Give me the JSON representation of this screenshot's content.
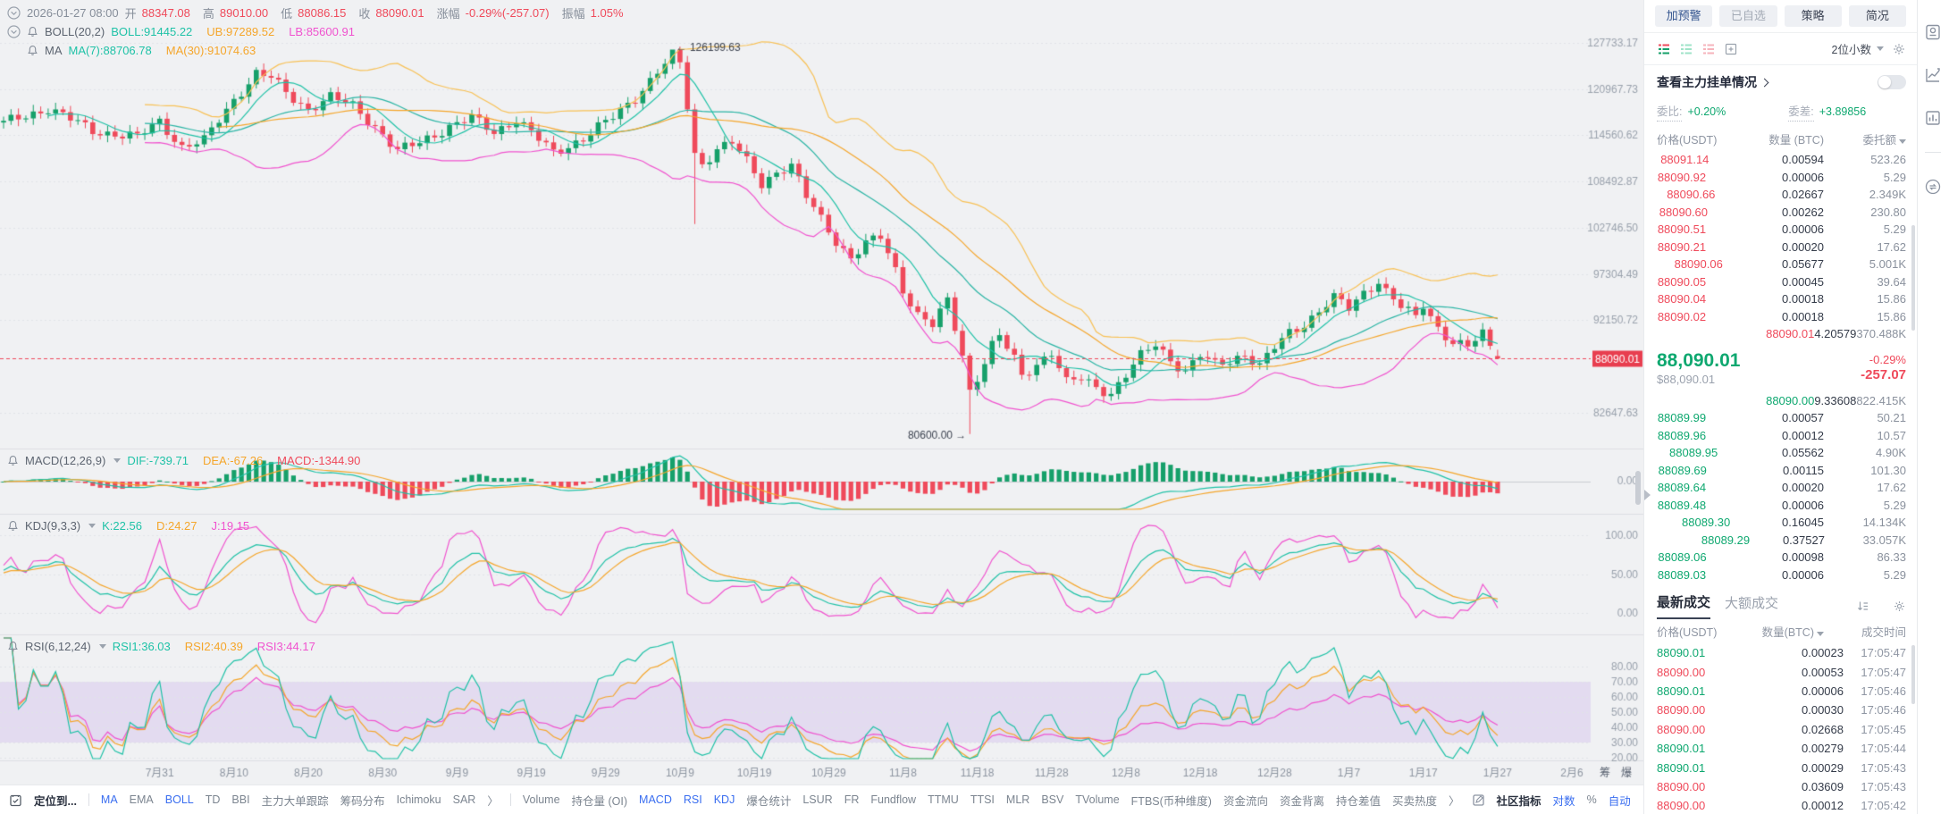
{
  "info_bar": {
    "datetime": "2026-01-27 08:00",
    "segments": [
      {
        "label": "开",
        "value": "88347.08"
      },
      {
        "label": "高",
        "value": "89010.00"
      },
      {
        "label": "低",
        "value": "88086.15"
      },
      {
        "label": "收",
        "value": "88090.01"
      },
      {
        "label": "涨幅",
        "value": "-0.29%(-257.07)"
      },
      {
        "label": "振幅",
        "value": "1.05%"
      }
    ]
  },
  "overlays": {
    "boll": {
      "name": "BOLL(20,2)",
      "values": [
        {
          "text": "BOLL:91445.22",
          "color": "#1fc2a7"
        },
        {
          "text": "UB:97289.52",
          "color": "#f5a62b"
        },
        {
          "text": "LB:85600.91",
          "color": "#f053cf"
        }
      ]
    },
    "ma": {
      "name": "MA",
      "values": [
        {
          "text": "MA(7):88706.78",
          "color": "#1fc2a7"
        },
        {
          "text": "MA(30):91074.63",
          "color": "#f5a62b"
        }
      ]
    },
    "macd": {
      "name": "MACD(12,26,9)",
      "values": [
        {
          "text": "DIF:-739.71",
          "color": "#1fc2a7"
        },
        {
          "text": "DEA:-67.26",
          "color": "#f5a62b"
        },
        {
          "text": "MACD:-1344.90",
          "color": "#ef4a5b"
        }
      ]
    },
    "kdj": {
      "name": "KDJ(9,3,3)",
      "values": [
        {
          "text": "K:22.56",
          "color": "#1fc2a7"
        },
        {
          "text": "D:24.27",
          "color": "#f5a62b"
        },
        {
          "text": "J:19.15",
          "color": "#f053cf"
        }
      ]
    },
    "rsi": {
      "name": "RSI(6,12,24)",
      "values": [
        {
          "text": "RSI1:36.03",
          "color": "#1fc2a7"
        },
        {
          "text": "RSI2:40.39",
          "color": "#f5a62b"
        },
        {
          "text": "RSI3:44.17",
          "color": "#f053cf"
        }
      ]
    }
  },
  "chart_data": {
    "type": "candlestick",
    "log_scale": true,
    "price_axis_labels": [
      "127733.17",
      "120967.73",
      "114560.62",
      "108492.87",
      "102746.50",
      "97304.49",
      "92150.72",
      "82647.63"
    ],
    "current_price": 88090.01,
    "current_price_label": "88090.01",
    "macd_axis_labels": [
      "0.00"
    ],
    "kdj_axis_labels": [
      "100.00",
      "50.00",
      "0.00"
    ],
    "rsi_axis_labels": [
      "80.00",
      "70.00",
      "60.00",
      "50.00",
      "40.00",
      "30.00",
      "20.00"
    ],
    "annotation_high": "← 126199.63",
    "annotation_low": "80600.00 →",
    "high_anchor": {
      "slot": 90,
      "price": 126199.63
    },
    "low_anchor": {
      "slot": 130,
      "price": 80600.0
    },
    "crash_wick": {
      "slot": 93,
      "low": 103200
    },
    "last_candle": {
      "open": 88347.08,
      "high": 89010.0,
      "low": 88086.15,
      "close": 88090.01
    },
    "candle_count": 202,
    "date_labels": [
      {
        "l": "7月31",
        "s": 21
      },
      {
        "l": "8月10",
        "s": 31
      },
      {
        "l": "8月20",
        "s": 41
      },
      {
        "l": "8月30",
        "s": 51
      },
      {
        "l": "9月9",
        "s": 61
      },
      {
        "l": "9月19",
        "s": 71
      },
      {
        "l": "9月29",
        "s": 81
      },
      {
        "l": "10月9",
        "s": 91
      },
      {
        "l": "10月19",
        "s": 101
      },
      {
        "l": "10月29",
        "s": 111
      },
      {
        "l": "11月8",
        "s": 121
      },
      {
        "l": "11月18",
        "s": 131
      },
      {
        "l": "11月28",
        "s": 141
      },
      {
        "l": "12月8",
        "s": 151
      },
      {
        "l": "12月18",
        "s": 161
      },
      {
        "l": "12月28",
        "s": 171
      },
      {
        "l": "1月7",
        "s": 181
      },
      {
        "l": "1月17",
        "s": 191
      },
      {
        "l": "1月27",
        "s": 201
      },
      {
        "l": "2月6",
        "s": 211
      }
    ],
    "extra_axis_chars": [
      "筹",
      "爆"
    ],
    "anchors": [
      [
        0,
        116200
      ],
      [
        6,
        118300
      ],
      [
        12,
        115200
      ],
      [
        18,
        114300
      ],
      [
        21,
        116500
      ],
      [
        24,
        113000
      ],
      [
        27,
        113800
      ],
      [
        31,
        119500
      ],
      [
        34,
        123200
      ],
      [
        36,
        122600
      ],
      [
        38,
        120400
      ],
      [
        41,
        118200
      ],
      [
        44,
        119800
      ],
      [
        47,
        118600
      ],
      [
        50,
        115800
      ],
      [
        53,
        112400
      ],
      [
        56,
        113600
      ],
      [
        60,
        115800
      ],
      [
        63,
        116900
      ],
      [
        66,
        115000
      ],
      [
        69,
        116800
      ],
      [
        72,
        114000
      ],
      [
        74,
        112200
      ],
      [
        78,
        114200
      ],
      [
        82,
        117000
      ],
      [
        85,
        119800
      ],
      [
        88,
        123500
      ],
      [
        90,
        125800
      ],
      [
        91,
        124600
      ],
      [
        92,
        118500
      ],
      [
        93,
        112000
      ],
      [
        94,
        110800
      ],
      [
        96,
        112800
      ],
      [
        98,
        113600
      ],
      [
        100,
        111000
      ],
      [
        102,
        108200
      ],
      [
        104,
        109800
      ],
      [
        106,
        110600
      ],
      [
        108,
        106500
      ],
      [
        110,
        103800
      ],
      [
        112,
        101200
      ],
      [
        114,
        99200
      ],
      [
        116,
        100800
      ],
      [
        118,
        101600
      ],
      [
        120,
        97800
      ],
      [
        121,
        95600
      ],
      [
        123,
        92800
      ],
      [
        125,
        91600
      ],
      [
        127,
        94200
      ],
      [
        129,
        88500
      ],
      [
        130,
        84800
      ],
      [
        131,
        86200
      ],
      [
        133,
        89500
      ],
      [
        134,
        90400
      ],
      [
        136,
        88000
      ],
      [
        137,
        86200
      ],
      [
        139,
        87600
      ],
      [
        141,
        88800
      ],
      [
        143,
        85600
      ],
      [
        145,
        86000
      ],
      [
        147,
        85200
      ],
      [
        149,
        84600
      ],
      [
        151,
        86400
      ],
      [
        153,
        88300
      ],
      [
        155,
        89600
      ],
      [
        157,
        88000
      ],
      [
        159,
        86800
      ],
      [
        161,
        88400
      ],
      [
        163,
        87400
      ],
      [
        165,
        87900
      ],
      [
        167,
        88600
      ],
      [
        169,
        87300
      ],
      [
        171,
        89200
      ],
      [
        173,
        90800
      ],
      [
        175,
        91800
      ],
      [
        177,
        93200
      ],
      [
        179,
        94600
      ],
      [
        181,
        93400
      ],
      [
        183,
        95200
      ],
      [
        185,
        96600
      ],
      [
        186,
        95400
      ],
      [
        188,
        93600
      ],
      [
        190,
        92400
      ],
      [
        191,
        93800
      ],
      [
        193,
        91400
      ],
      [
        195,
        89800
      ],
      [
        197,
        89300
      ],
      [
        199,
        90600
      ],
      [
        201,
        88090.01
      ]
    ],
    "colors": {
      "up": "#16a06a",
      "down": "#ef4a5b",
      "ma7": "#1fc2a7",
      "ma30": "#f5a62b",
      "ub": "#f8c155",
      "mid": "#2ab5a5",
      "lb": "#f053cf",
      "dif": "#1fc2a7",
      "dea": "#f5a62b",
      "k": "#1fc2a7",
      "d": "#f5a62b",
      "j": "#f053cf",
      "rsi1": "#1fc2a7",
      "rsi2": "#f5a62b",
      "rsi3": "#f053cf",
      "band": "rgba(168,110,228,0.17)",
      "grid": "#e1e3e7",
      "axis_text": "#9aa2ad",
      "anno": "#3c4350",
      "cur_line": "#ef4a5b",
      "cur_tag_bg": "#e83e4f"
    }
  },
  "bottom_bar": [
    {
      "type": "icon",
      "name": "locate-icon"
    },
    {
      "label": "定位到...",
      "style": "bold"
    },
    {
      "type": "divider"
    },
    {
      "label": "MA",
      "style": "active"
    },
    {
      "label": "EMA"
    },
    {
      "label": "BOLL",
      "style": "active"
    },
    {
      "label": "TD"
    },
    {
      "label": "BBI"
    },
    {
      "label": "主力大单跟踪"
    },
    {
      "label": "筹码分布"
    },
    {
      "label": "Ichimoku"
    },
    {
      "label": "SAR"
    },
    {
      "label": "〉"
    },
    {
      "type": "divider"
    },
    {
      "label": "Volume"
    },
    {
      "label": "持仓量 (OI)"
    },
    {
      "label": "MACD",
      "style": "active"
    },
    {
      "label": "RSI",
      "style": "active"
    },
    {
      "label": "KDJ",
      "style": "active"
    },
    {
      "label": "爆仓统计"
    },
    {
      "label": "LSUR"
    },
    {
      "label": "FR"
    },
    {
      "label": "Fundflow"
    },
    {
      "label": "TTMU"
    },
    {
      "label": "TTSI"
    },
    {
      "label": "MLR"
    },
    {
      "label": "BSV"
    },
    {
      "label": "TVolume"
    },
    {
      "label": "FTBS(币种维度)"
    },
    {
      "label": "资金流向"
    },
    {
      "label": "资金背离"
    },
    {
      "label": "持仓差值"
    },
    {
      "label": "买卖热度"
    },
    {
      "label": "〉"
    },
    {
      "type": "icon",
      "name": "edit-indicator-icon"
    },
    {
      "label": "社区指标",
      "style": "bold"
    },
    {
      "label": "对数",
      "style": "active"
    },
    {
      "label": "%"
    },
    {
      "label": "自动",
      "style": "active"
    }
  ],
  "right_panel": {
    "tabs": [
      "加预警",
      "已自选",
      "策略",
      "简况"
    ],
    "precision": "2位小数",
    "main_orders_link": "查看主力挂单情况",
    "ratio_label": "委比:",
    "ratio_value": "+0.20%",
    "diff_label": "委差:",
    "diff_value": "+3.89856",
    "book_header": {
      "price": "价格(USDT)",
      "qty": "数量 (BTC)",
      "amount": "委托额"
    },
    "asks": [
      [
        "88091.14",
        "0.00594",
        "523.26",
        1.5
      ],
      [
        "88090.92",
        "0.00006",
        "5.29",
        0.3
      ],
      [
        "88090.66",
        "0.02667",
        "2.349K",
        4
      ],
      [
        "88090.60",
        "0.00262",
        "230.80",
        1
      ],
      [
        "88090.51",
        "0.00006",
        "5.29",
        0.3
      ],
      [
        "88090.21",
        "0.00020",
        "17.62",
        0.3
      ],
      [
        "88090.06",
        "0.05677",
        "5.001K",
        7
      ],
      [
        "88090.05",
        "0.00045",
        "39.64",
        0.3
      ],
      [
        "88090.04",
        "0.00018",
        "15.86",
        0.3
      ],
      [
        "88090.02",
        "0.00018",
        "15.86",
        0.3
      ],
      [
        "88090.01",
        "4.20579",
        "370.488K",
        100
      ]
    ],
    "ticker": {
      "price": "88,090.01",
      "usd": "$88,090.01",
      "pct": "-0.29%",
      "chg": "-257.07"
    },
    "bids": [
      [
        "88090.00",
        "9.33608",
        "822.415K",
        100
      ],
      [
        "88089.99",
        "0.00057",
        "50.21",
        0.3
      ],
      [
        "88089.96",
        "0.00012",
        "10.57",
        0.3
      ],
      [
        "88089.95",
        "0.05562",
        "4.90K",
        5
      ],
      [
        "88089.69",
        "0.00115",
        "101.30",
        0.6
      ],
      [
        "88089.64",
        "0.00020",
        "17.62",
        0.3
      ],
      [
        "88089.48",
        "0.00006",
        "5.29",
        0.3
      ],
      [
        "88089.30",
        "0.16045",
        "14.134K",
        10
      ],
      [
        "88089.29",
        "0.37527",
        "33.057K",
        18
      ],
      [
        "88089.06",
        "0.00098",
        "86.33",
        0.5
      ],
      [
        "88089.03",
        "0.00006",
        "5.29",
        0.3
      ]
    ],
    "trade_tabs": [
      "最新成交",
      "大额成交"
    ],
    "trades_header": {
      "price": "价格(USDT)",
      "qty": "数量(BTC)",
      "time": "成交时间"
    },
    "trades": [
      [
        "88090.01",
        "0.00023",
        "17:05:47",
        "up"
      ],
      [
        "88090.00",
        "0.00053",
        "17:05:47",
        "down"
      ],
      [
        "88090.01",
        "0.00006",
        "17:05:46",
        "up"
      ],
      [
        "88090.00",
        "0.00030",
        "17:05:46",
        "down"
      ],
      [
        "88090.00",
        "0.02668",
        "17:05:45",
        "down"
      ],
      [
        "88090.01",
        "0.00279",
        "17:05:44",
        "up"
      ],
      [
        "88090.01",
        "0.00029",
        "17:05:43",
        "up"
      ],
      [
        "88090.00",
        "0.03609",
        "17:05:43",
        "down"
      ],
      [
        "88090.00",
        "0.00012",
        "17:05:42",
        "down"
      ]
    ]
  }
}
